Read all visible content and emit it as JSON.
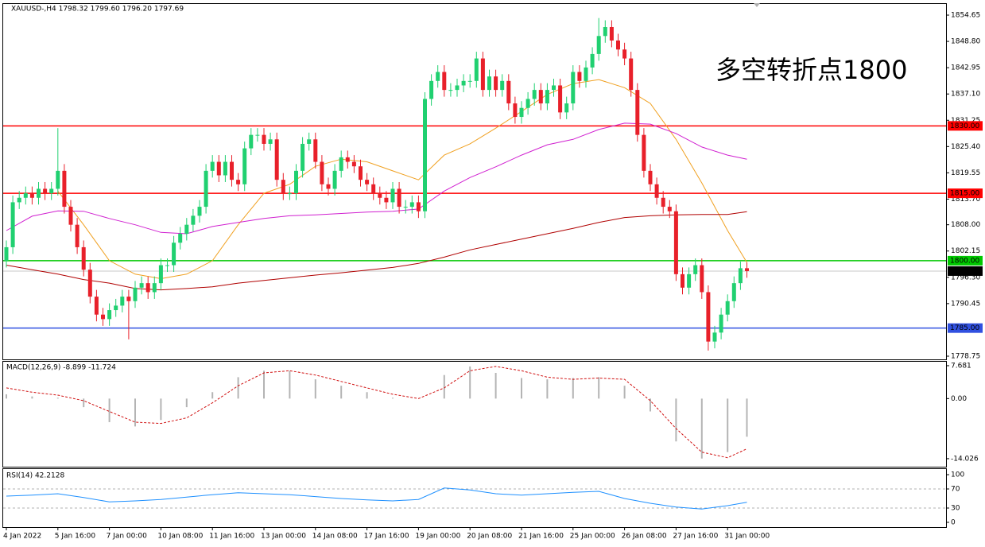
{
  "chart_data": [
    {
      "type": "candlestick",
      "title": "XAUUSD-,H4  1798.32 1799.60 1796.20 1797.69",
      "annotation": "多空转折点1800",
      "up_color": "#20d070",
      "down_color": "#e8202a",
      "ylim": [
        1778.04,
        1857.13
      ],
      "yticks": [
        1854.65,
        {
          "value": 1848.8,
          "label": "1848.80"
        },
        1842.95,
        {
          "value": 1837.1,
          "label": "1837.10"
        },
        1831.25,
        {
          "value": 1825.4,
          "label": "1825.40"
        },
        1819.55,
        {
          "value": 1813.7,
          "label": "1813.70"
        },
        {
          "value": 1808,
          "label": "1808.00"
        },
        1802.15,
        {
          "value": 1796.3,
          "label": "1796.30"
        },
        1790.45,
        1778.75
      ],
      "levels": [
        {
          "value": 1830,
          "label": "1830.00",
          "color": "#ff0000"
        },
        {
          "value": 1815,
          "label": "1815.00",
          "color": "#ff0000"
        },
        {
          "value": 1800,
          "label": "1800.00",
          "color": "#00c800"
        },
        {
          "value": 1785,
          "label": "1785.00",
          "color": "#3050e0"
        },
        {
          "value": 1797.69,
          "color": "#c8c8c8"
        }
      ],
      "categories": [
        "4 Jan 2022",
        null,
        null,
        null,
        null,
        null,
        null,
        null,
        "5 Jan 16:00",
        null,
        null,
        null,
        null,
        null,
        null,
        null,
        "7 Jan 00:00",
        null,
        null,
        null,
        null,
        null,
        null,
        null,
        "10 Jan 08:00",
        null,
        null,
        null,
        null,
        null,
        null,
        null,
        "11 Jan 16:00",
        null,
        null,
        null,
        null,
        null,
        null,
        null,
        "13 Jan 00:00",
        null,
        null,
        null,
        null,
        null,
        null,
        null,
        "14 Jan 08:00",
        null,
        null,
        null,
        null,
        null,
        null,
        null,
        "17 Jan 16:00",
        null,
        null,
        null,
        null,
        null,
        null,
        null,
        "19 Jan 00:00",
        null,
        null,
        null,
        null,
        null,
        null,
        null,
        "20 Jan 08:00",
        null,
        null,
        null,
        null,
        null,
        null,
        null,
        "21 Jan 16:00",
        null,
        null,
        null,
        null,
        null,
        null,
        null,
        "25 Jan 00:00",
        null,
        null,
        null,
        null,
        null,
        null,
        null,
        "26 Jan 08:00",
        null,
        null,
        null,
        null,
        null,
        null,
        null,
        "27 Jan 16:00",
        null,
        null,
        null,
        null,
        null,
        null,
        null,
        "31 Jan 00:00",
        null,
        null,
        null
      ],
      "open": [
        1800,
        1803,
        1813,
        1814,
        1815,
        1814,
        1816,
        1815,
        1816,
        1820,
        1812,
        1808,
        1803,
        1798,
        1792,
        1788,
        1787,
        1789,
        1790,
        1792,
        1791,
        1794,
        1795,
        1793,
        1795,
        1799,
        1799,
        1804,
        1806,
        1808,
        1810,
        1812,
        1820,
        1822,
        1819,
        1822,
        1818,
        1817,
        1825,
        1828,
        1828,
        1826,
        1827,
        1818,
        1815,
        1815,
        1820,
        1826,
        1827,
        1822,
        1817,
        1816,
        1820,
        1823,
        1822,
        1821,
        1818,
        1817,
        1815,
        1814,
        1813,
        1816,
        1812,
        1812,
        1813,
        1811,
        1836,
        1840,
        1842,
        1838,
        1838,
        1839,
        1840,
        1840,
        1845,
        1838,
        1841,
        1838,
        1840,
        1835,
        1832,
        1834,
        1836,
        1838,
        1835,
        1838,
        1839,
        1833,
        1835,
        1842,
        1840,
        1843,
        1846,
        1850,
        1852,
        1849,
        1847,
        1845,
        1838,
        1828,
        1820,
        1817,
        1814,
        1812,
        1811,
        1797,
        1794,
        1797,
        1799,
        1793,
        1782,
        1784,
        1788,
        1791,
        1795,
        1798.32
      ],
      "high": [
        1804.5,
        1814.5,
        1815.5,
        1816.5,
        1816.5,
        1817.5,
        1817.5,
        1817.5,
        1829.5,
        1821.5,
        1813.5,
        1809.5,
        1804.5,
        1799.5,
        1793.5,
        1789.5,
        1790.5,
        1791.5,
        1793.5,
        1793.5,
        1795.5,
        1796.5,
        1796.5,
        1796.5,
        1800.5,
        1800.5,
        1805.5,
        1807.5,
        1809.5,
        1811.5,
        1813.5,
        1821.5,
        1823.5,
        1823.5,
        1823.5,
        1823.5,
        1819.5,
        1826.5,
        1829.5,
        1829.5,
        1829.5,
        1828.5,
        1828.5,
        1819.5,
        1816.5,
        1821.5,
        1827.5,
        1828.5,
        1828.5,
        1823.5,
        1818.5,
        1821.5,
        1824.5,
        1824.5,
        1823.5,
        1822.5,
        1819.5,
        1818.5,
        1816.5,
        1815.5,
        1817.5,
        1817.5,
        1813.5,
        1814.5,
        1814.5,
        1837.5,
        1841.5,
        1843.5,
        1843.5,
        1839.5,
        1840.5,
        1841.5,
        1841.5,
        1846.5,
        1846.5,
        1842.5,
        1842.5,
        1841.5,
        1841.5,
        1836.5,
        1835.5,
        1837.5,
        1839.5,
        1839.5,
        1839.5,
        1840.5,
        1840.5,
        1836.5,
        1843.5,
        1843.5,
        1844.5,
        1847.5,
        1854,
        1853.5,
        1853.5,
        1850.5,
        1848.5,
        1846.5,
        1839.5,
        1829.5,
        1821.5,
        1818.5,
        1815.5,
        1813.5,
        1812.5,
        1798.5,
        1798.5,
        1800.5,
        1800.5,
        1794.5,
        1785.5,
        1789.5,
        1792.5,
        1796.5,
        1799.8,
        1799.6
      ],
      "low": [
        1798.5,
        1801.5,
        1811.5,
        1812.5,
        1812.5,
        1812.5,
        1813.5,
        1813.5,
        1814.5,
        1810.5,
        1806.5,
        1801.5,
        1796.5,
        1790.5,
        1786.5,
        1785.5,
        1785.5,
        1787.5,
        1788.5,
        1782.5,
        1789.5,
        1792.5,
        1791.5,
        1791.5,
        1793.5,
        1797.5,
        1797.5,
        1802.5,
        1804.5,
        1806.5,
        1808.5,
        1810.5,
        1818.5,
        1817.5,
        1817.5,
        1816.5,
        1815.5,
        1815.5,
        1823.5,
        1826.5,
        1824.5,
        1824.5,
        1816.5,
        1813.5,
        1813.5,
        1813.5,
        1818.5,
        1824.5,
        1820.5,
        1815.5,
        1814.5,
        1814.5,
        1818.5,
        1820.5,
        1819.5,
        1816.5,
        1815.5,
        1813.5,
        1812.5,
        1811.5,
        1811.5,
        1810.5,
        1810.5,
        1810.5,
        1809.5,
        1809.5,
        1834.5,
        1838.5,
        1836.5,
        1836.5,
        1836.5,
        1837.5,
        1838.5,
        1838.5,
        1836.5,
        1836.5,
        1836.5,
        1836.5,
        1833.5,
        1830.5,
        1830.5,
        1832.5,
        1834.5,
        1833.5,
        1833.5,
        1836.5,
        1831.5,
        1831.5,
        1833.5,
        1838.5,
        1838.5,
        1841.5,
        1844.5,
        1848.5,
        1847.5,
        1845.5,
        1843.5,
        1836.5,
        1826.5,
        1818.5,
        1815.5,
        1812.5,
        1810.5,
        1809.5,
        1795.5,
        1792.5,
        1792.5,
        1795.5,
        1791.5,
        1780,
        1780.5,
        1782.5,
        1786.5,
        1789.5,
        1793.5,
        1796.2
      ],
      "close": [
        1803,
        1813,
        1814,
        1815,
        1814,
        1816,
        1815,
        1816,
        1820,
        1812,
        1808,
        1803,
        1798,
        1792,
        1788,
        1787,
        1789,
        1790,
        1792,
        1791,
        1794,
        1795,
        1793,
        1795,
        1799,
        1799,
        1804,
        1806,
        1808,
        1810,
        1812,
        1820,
        1822,
        1819,
        1822,
        1818,
        1817,
        1825,
        1828,
        1828,
        1826,
        1827,
        1818,
        1815,
        1815,
        1820,
        1826,
        1827,
        1822,
        1817,
        1816,
        1820,
        1823,
        1822,
        1821,
        1818,
        1817,
        1815,
        1814,
        1813,
        1816,
        1812,
        1812,
        1813,
        1811,
        1836,
        1840,
        1842,
        1838,
        1838,
        1839,
        1840,
        1840,
        1845,
        1838,
        1841,
        1838,
        1840,
        1835,
        1832,
        1834,
        1836,
        1838,
        1835,
        1838,
        1839,
        1833,
        1835,
        1842,
        1840,
        1843,
        1846,
        1850,
        1852,
        1849,
        1847,
        1845,
        1838,
        1828,
        1820,
        1817,
        1814,
        1812,
        1811,
        1797,
        1794,
        1797,
        1799,
        1793,
        1782,
        1784,
        1788,
        1791,
        1795,
        1798.32,
        1797.69
      ],
      "x": [
        0,
        4,
        8,
        12,
        16,
        20,
        24,
        28,
        32,
        36,
        40,
        44,
        48,
        52,
        56,
        60,
        64,
        68,
        72,
        76,
        80,
        84,
        88,
        92,
        96,
        100,
        104,
        108,
        112,
        115
      ],
      "series": [
        {
          "color": "#f0a020",
          "values": [
            null,
            null,
            1815.5,
            1808,
            1800,
            1797,
            1796,
            1797,
            1800,
            1808,
            1815,
            1817,
            1821,
            1822.6,
            1822,
            1820,
            1818,
            1823.5,
            1826,
            1829.5,
            1833.2,
            1837,
            1839.4,
            1840.3,
            1838.5,
            1835,
            1827,
            1817.3,
            1806.7,
            1799.6
          ]
        },
        {
          "color": "#d020d0",
          "values": [
            1806.7,
            1809.9,
            1811.1,
            1811,
            1809.4,
            1808,
            1806.3,
            1806,
            1807.6,
            1808.5,
            1809.4,
            1810,
            1810.2,
            1810.5,
            1810.8,
            1811,
            1811.5,
            1815.5,
            1818.5,
            1820.9,
            1823.5,
            1825.8,
            1827,
            1829.2,
            1830.6,
            1830.4,
            1828.3,
            1825.3,
            1823.5,
            1822.6
          ]
        },
        {
          "color": "#b00000",
          "values": [
            1799,
            1798,
            1797,
            1795.8,
            1795,
            1793.8,
            1793.5,
            1793.8,
            1794.2,
            1795,
            1795.6,
            1796.2,
            1796.8,
            1797.3,
            1797.9,
            1798.5,
            1799.4,
            1800.8,
            1802.4,
            1803.6,
            1804.8,
            1806,
            1807.2,
            1808.5,
            1809.6,
            1810,
            1810.2,
            1810.3,
            1810.3,
            1810.9
          ]
        }
      ]
    },
    {
      "type": "macd",
      "title": "MACD(12,26,9) -8.899 -11.724",
      "ylim": [
        -15.9,
        8.6
      ],
      "yticks": [
        7.681,
        {
          "value": 0,
          "label": "0.00"
        },
        -14.026
      ],
      "x": [
        0,
        4,
        8,
        12,
        16,
        20,
        24,
        28,
        32,
        36,
        40,
        44,
        48,
        52,
        56,
        60,
        64,
        68,
        72,
        76,
        80,
        84,
        88,
        92,
        96,
        100,
        104,
        108,
        112,
        115
      ],
      "histogram": {
        "color": "#b4b4b4",
        "values": [
          1,
          0.5,
          0.2,
          -2,
          -5.5,
          -6.5,
          -5,
          -2,
          1.5,
          5,
          6.5,
          6.5,
          4.5,
          3,
          1.5,
          0.2,
          0,
          5.5,
          7.5,
          6,
          4.8,
          4.5,
          4.8,
          5,
          3,
          -3,
          -10,
          -14,
          -12.5,
          -8.899
        ]
      },
      "signal": {
        "color": "#d01010",
        "values": [
          2.5,
          1.5,
          0.8,
          -0.5,
          -3,
          -5.5,
          -5.8,
          -4.5,
          -1,
          3,
          6,
          6.5,
          5.5,
          4,
          2.5,
          1,
          0,
          2.5,
          6.5,
          7.5,
          6.5,
          5,
          4.5,
          4.8,
          4.5,
          -0.5,
          -7,
          -12.5,
          -13.8,
          -11.724
        ]
      }
    },
    {
      "type": "rsi",
      "title": "RSI(14) 42.2128",
      "ylim": [
        -10,
        111.7
      ],
      "yticks": [
        100,
        70,
        30,
        0
      ],
      "levels": [
        70,
        30
      ],
      "x": [
        0,
        4,
        8,
        12,
        16,
        20,
        24,
        28,
        32,
        36,
        40,
        44,
        48,
        52,
        56,
        60,
        64,
        68,
        72,
        76,
        80,
        84,
        88,
        92,
        96,
        100,
        104,
        108,
        112,
        115
      ],
      "color": "#1e90ff",
      "values": [
        55,
        57,
        60,
        52,
        43,
        45,
        48,
        53,
        58,
        62,
        60,
        58,
        54,
        50,
        47,
        45,
        48,
        72,
        68,
        60,
        57,
        60,
        63,
        65,
        50,
        40,
        32,
        28,
        35,
        42.2128
      ]
    }
  ]
}
